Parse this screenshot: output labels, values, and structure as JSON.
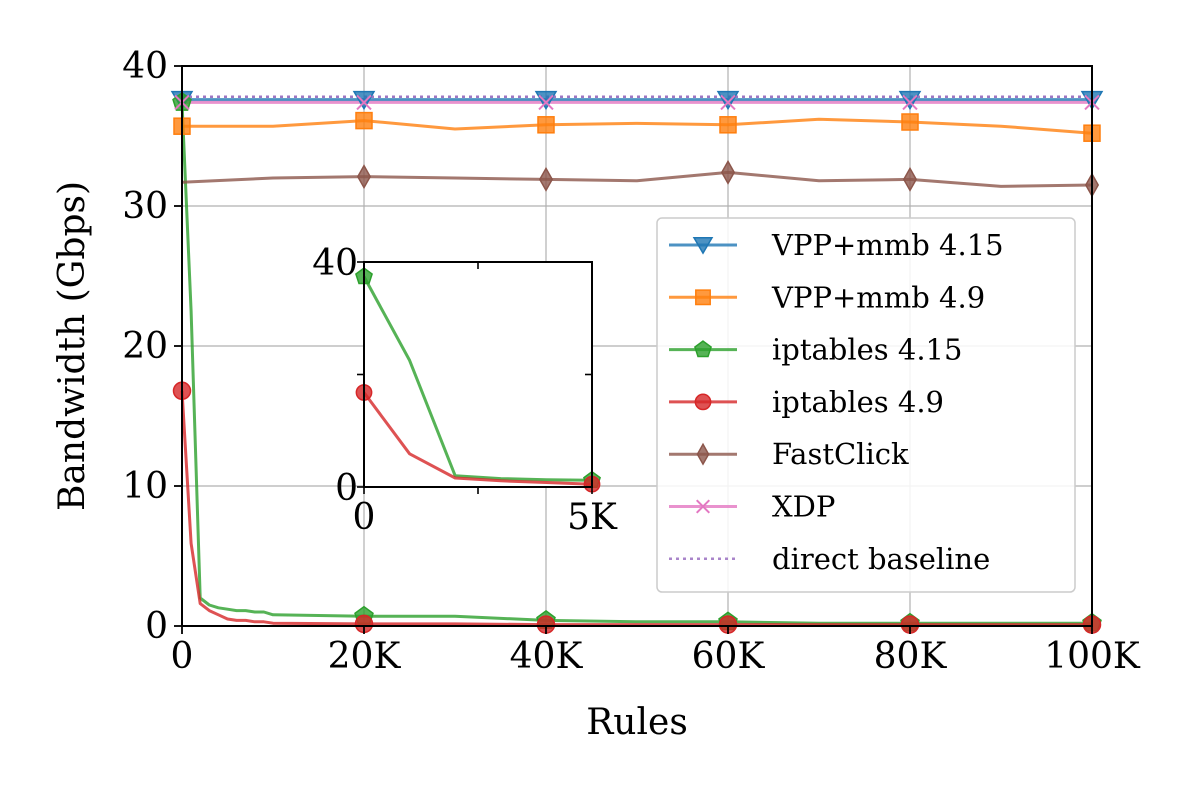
{
  "chart_data": {
    "type": "line",
    "xlabel": "Rules",
    "ylabel": "Bandwidth (Gbps)",
    "xlim": [
      0,
      100000
    ],
    "ylim": [
      0,
      40
    ],
    "xticks": [
      0,
      20000,
      40000,
      60000,
      80000,
      100000
    ],
    "xtick_labels": [
      "0",
      "20K",
      "40K",
      "60K",
      "80K",
      "100K"
    ],
    "yticks": [
      0,
      10,
      20,
      30,
      40
    ],
    "ytick_labels": [
      "0",
      "10",
      "20",
      "30",
      "40"
    ],
    "grid": true,
    "legend_position": "center-right",
    "series": [
      {
        "name": "VPP+mmb 4.15",
        "color": "#1f77b4",
        "marker": "triangle-down",
        "style": "solid",
        "marker_x": [
          0,
          20000,
          40000,
          60000,
          80000,
          100000
        ],
        "x": [
          0,
          10000,
          20000,
          30000,
          40000,
          50000,
          60000,
          70000,
          80000,
          90000,
          100000
        ],
        "y": [
          37.6,
          37.6,
          37.6,
          37.6,
          37.6,
          37.6,
          37.6,
          37.6,
          37.6,
          37.6,
          37.6
        ]
      },
      {
        "name": "VPP+mmb 4.9",
        "color": "#ff7f0e",
        "marker": "square",
        "style": "solid",
        "marker_x": [
          0,
          20000,
          40000,
          60000,
          80000,
          100000
        ],
        "x": [
          0,
          10000,
          20000,
          30000,
          40000,
          50000,
          60000,
          70000,
          80000,
          90000,
          100000
        ],
        "y": [
          35.7,
          35.7,
          36.1,
          35.5,
          35.8,
          35.9,
          35.8,
          36.2,
          36.0,
          35.7,
          35.2
        ]
      },
      {
        "name": "iptables 4.15",
        "color": "#2ca02c",
        "marker": "pentagon",
        "style": "solid",
        "marker_x": [
          0,
          20000,
          40000,
          60000,
          80000,
          100000
        ],
        "x": [
          0,
          1000,
          2000,
          3000,
          4000,
          5000,
          6000,
          7000,
          8000,
          9000,
          10000,
          20000,
          30000,
          40000,
          50000,
          60000,
          70000,
          80000,
          90000,
          100000
        ],
        "y": [
          37.4,
          22.5,
          2.0,
          1.5,
          1.3,
          1.2,
          1.1,
          1.1,
          1.0,
          1.0,
          0.8,
          0.7,
          0.7,
          0.4,
          0.3,
          0.3,
          0.2,
          0.2,
          0.2,
          0.2
        ]
      },
      {
        "name": "iptables 4.9",
        "color": "#d62728",
        "marker": "circle",
        "style": "solid",
        "marker_x": [
          0,
          20000,
          40000,
          60000,
          80000,
          100000
        ],
        "x": [
          0,
          1000,
          2000,
          3000,
          4000,
          5000,
          6000,
          7000,
          8000,
          9000,
          10000,
          20000,
          30000,
          40000,
          50000,
          60000,
          70000,
          80000,
          90000,
          100000
        ],
        "y": [
          16.8,
          5.9,
          1.6,
          1.1,
          0.8,
          0.5,
          0.4,
          0.4,
          0.3,
          0.3,
          0.2,
          0.15,
          0.15,
          0.1,
          0.1,
          0.1,
          0.1,
          0.1,
          0.1,
          0.1
        ]
      },
      {
        "name": "FastClick",
        "color": "#8c564b",
        "marker": "thin-diamond",
        "style": "solid",
        "marker_x": [
          20000,
          40000,
          60000,
          80000,
          100000
        ],
        "x": [
          0,
          10000,
          20000,
          30000,
          40000,
          50000,
          60000,
          70000,
          80000,
          90000,
          100000
        ],
        "y": [
          31.7,
          32.0,
          32.1,
          32.0,
          31.9,
          31.8,
          32.4,
          31.8,
          31.9,
          31.4,
          31.5
        ]
      },
      {
        "name": "XDP",
        "color": "#e377c2",
        "marker": "x",
        "style": "solid",
        "marker_x": [
          0,
          20000,
          40000,
          60000,
          80000,
          100000
        ],
        "x": [
          0,
          10000,
          20000,
          30000,
          40000,
          50000,
          60000,
          70000,
          80000,
          90000,
          100000
        ],
        "y": [
          37.4,
          37.4,
          37.4,
          37.4,
          37.4,
          37.4,
          37.4,
          37.4,
          37.4,
          37.4,
          37.4
        ]
      },
      {
        "name": "direct baseline",
        "color": "#9467bd",
        "marker": "none",
        "style": "dotted",
        "marker_x": [],
        "x": [
          0,
          100000
        ],
        "y": [
          37.8,
          37.8
        ]
      }
    ],
    "inset": {
      "xlim": [
        0,
        5000
      ],
      "ylim": [
        0,
        40
      ],
      "xticks": [
        0,
        5000
      ],
      "xtick_labels": [
        "0",
        "5K"
      ],
      "yticks": [
        0,
        40
      ],
      "ytick_labels": [
        "0",
        "40"
      ],
      "extra_ticks_x": [
        2500
      ],
      "extra_ticks_y": [
        20
      ],
      "series": [
        {
          "name": "iptables 4.15",
          "color": "#2ca02c",
          "marker": "pentagon",
          "marker_x": [
            0,
            5000
          ],
          "x": [
            0,
            1000,
            2000,
            3000,
            4000,
            5000
          ],
          "y": [
            37.4,
            22.5,
            2.0,
            1.5,
            1.3,
            1.2
          ]
        },
        {
          "name": "iptables 4.9",
          "color": "#d62728",
          "marker": "circle",
          "marker_x": [
            0,
            5000
          ],
          "x": [
            0,
            1000,
            2000,
            3000,
            4000,
            5000
          ],
          "y": [
            16.8,
            5.9,
            1.6,
            1.1,
            0.8,
            0.5
          ]
        }
      ]
    }
  }
}
